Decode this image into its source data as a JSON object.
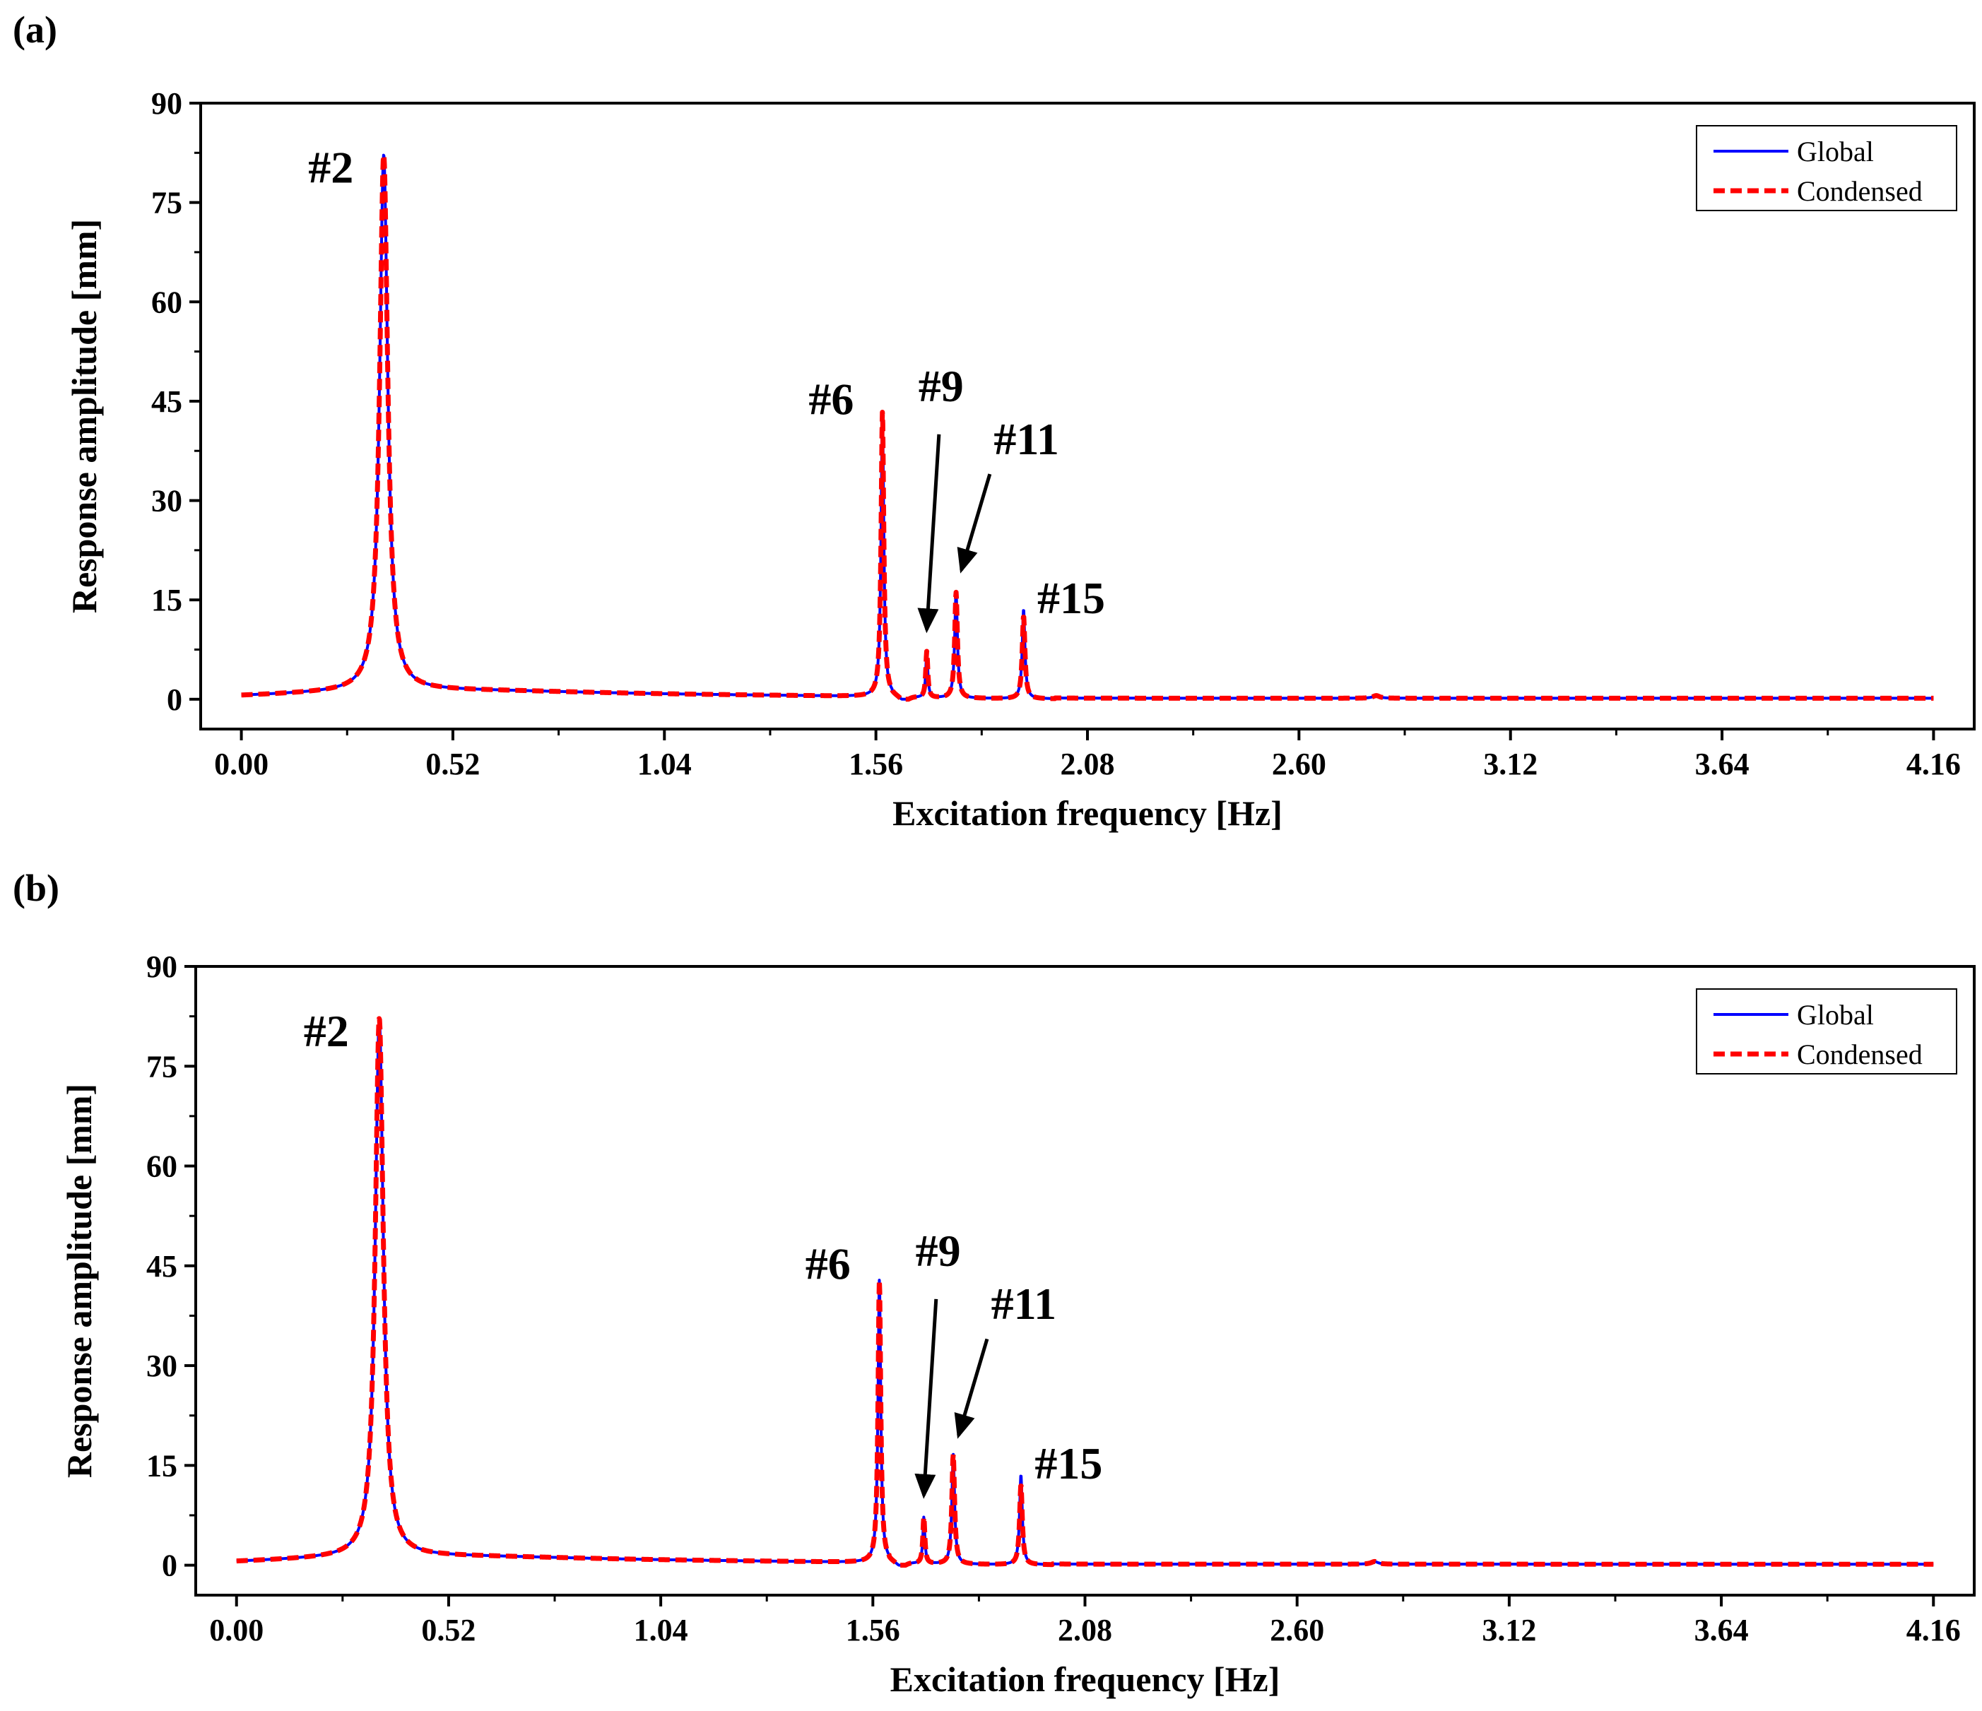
{
  "chart_data": [
    {
      "panel": "(a)",
      "type": "line",
      "xlabel": "Excitation frequency [Hz]",
      "ylabel": "Response amplitude [mm]",
      "xlim": [
        -0.1,
        4.26
      ],
      "ylim": [
        -4.5,
        90
      ],
      "x_ticks": [
        "0.00",
        "0.52",
        "1.04",
        "1.56",
        "2.08",
        "2.60",
        "3.12",
        "3.64",
        "4.16"
      ],
      "x_tick_values": [
        0.0,
        0.52,
        1.04,
        1.56,
        2.08,
        2.6,
        3.12,
        3.64,
        4.16
      ],
      "y_ticks": [
        "0",
        "15",
        "30",
        "45",
        "60",
        "75",
        "90"
      ],
      "y_tick_values": [
        0,
        15,
        30,
        45,
        60,
        75,
        90
      ],
      "legend": {
        "position": "top-right",
        "entries": [
          "Global",
          "Condensed"
        ]
      },
      "series": [
        {
          "name": "Global",
          "color": "#0000ff",
          "style": "solid",
          "peaks": [
            {
              "f": 0.35,
              "amp": 81,
              "w": 0.012
            },
            {
              "f": 1.576,
              "amp": 43,
              "w": 0.004
            },
            {
              "f": 1.685,
              "amp": 7,
              "w": 0.003
            },
            {
              "f": 1.757,
              "amp": 16,
              "w": 0.004
            },
            {
              "f": 1.923,
              "amp": 13.5,
              "w": 0.004
            },
            {
              "f": 2.79,
              "amp": 0.4,
              "w": 0.01
            }
          ]
        },
        {
          "name": "Condensed",
          "color": "#ff0000",
          "style": "dashed",
          "peaks": [
            {
              "f": 0.35,
              "amp": 81,
              "w": 0.012
            },
            {
              "f": 1.576,
              "amp": 43,
              "w": 0.004
            },
            {
              "f": 1.685,
              "amp": 7,
              "w": 0.003
            },
            {
              "f": 1.757,
              "amp": 16,
              "w": 0.004
            },
            {
              "f": 1.923,
              "amp": 12.5,
              "w": 0.004
            },
            {
              "f": 2.79,
              "amp": 0.4,
              "w": 0.01
            }
          ]
        }
      ],
      "annotations": [
        {
          "text": "#2",
          "x": 0.22,
          "y": 78,
          "arrow": false
        },
        {
          "text": "#6",
          "x": 1.45,
          "y": 43,
          "arrow": false
        },
        {
          "text": "#9",
          "x": 1.72,
          "y": 45,
          "arrow": true,
          "ax": 1.715,
          "ay": 40,
          "tx": 1.685,
          "ty": 10.5
        },
        {
          "text": "#11",
          "x": 1.93,
          "y": 37,
          "arrow": true,
          "ax": 1.84,
          "ay": 34,
          "tx": 1.77,
          "ty": 19.5
        },
        {
          "text": "#15",
          "x": 2.04,
          "y": 13,
          "arrow": false
        }
      ]
    },
    {
      "panel": "(b)",
      "type": "line",
      "xlabel": "Excitation frequency [Hz]",
      "ylabel": "Response amplitude [mm]",
      "xlim": [
        -0.1,
        4.26
      ],
      "ylim": [
        -4.5,
        90
      ],
      "x_ticks": [
        "0.00",
        "0.52",
        "1.04",
        "1.56",
        "2.08",
        "2.60",
        "3.12",
        "3.64",
        "4.16"
      ],
      "x_tick_values": [
        0.0,
        0.52,
        1.04,
        1.56,
        2.08,
        2.6,
        3.12,
        3.64,
        4.16
      ],
      "y_ticks": [
        "0",
        "15",
        "30",
        "45",
        "60",
        "75",
        "90"
      ],
      "y_tick_values": [
        0,
        15,
        30,
        45,
        60,
        75,
        90
      ],
      "legend": {
        "position": "top-right",
        "entries": [
          "Global",
          "Condensed"
        ]
      },
      "series": [
        {
          "name": "Global",
          "color": "#0000ff",
          "style": "solid",
          "peaks": [
            {
              "f": 0.35,
              "amp": 81,
              "w": 0.012
            },
            {
              "f": 1.576,
              "amp": 42.5,
              "w": 0.004
            },
            {
              "f": 1.685,
              "amp": 7,
              "w": 0.003
            },
            {
              "f": 1.757,
              "amp": 16.5,
              "w": 0.004
            },
            {
              "f": 1.923,
              "amp": 13.5,
              "w": 0.004
            },
            {
              "f": 2.79,
              "amp": 0.4,
              "w": 0.01
            }
          ]
        },
        {
          "name": "Condensed",
          "color": "#ff0000",
          "style": "dashed",
          "peaks": [
            {
              "f": 0.35,
              "amp": 81,
              "w": 0.012
            },
            {
              "f": 1.576,
              "amp": 42.5,
              "w": 0.004
            },
            {
              "f": 1.685,
              "amp": 7,
              "w": 0.003
            },
            {
              "f": 1.757,
              "amp": 16.5,
              "w": 0.004
            },
            {
              "f": 1.923,
              "amp": 12,
              "w": 0.004
            },
            {
              "f": 2.79,
              "amp": 0.4,
              "w": 0.01
            }
          ]
        }
      ],
      "annotations": [
        {
          "text": "#2",
          "x": 0.22,
          "y": 78,
          "arrow": false
        },
        {
          "text": "#6",
          "x": 1.45,
          "y": 43,
          "arrow": false
        },
        {
          "text": "#9",
          "x": 1.72,
          "y": 45,
          "arrow": true,
          "ax": 1.715,
          "ay": 40,
          "tx": 1.685,
          "ty": 10.5
        },
        {
          "text": "#11",
          "x": 1.93,
          "y": 37,
          "arrow": true,
          "ax": 1.84,
          "ay": 34,
          "tx": 1.77,
          "ty": 19.5
        },
        {
          "text": "#15",
          "x": 2.04,
          "y": 13,
          "arrow": false
        }
      ]
    }
  ]
}
